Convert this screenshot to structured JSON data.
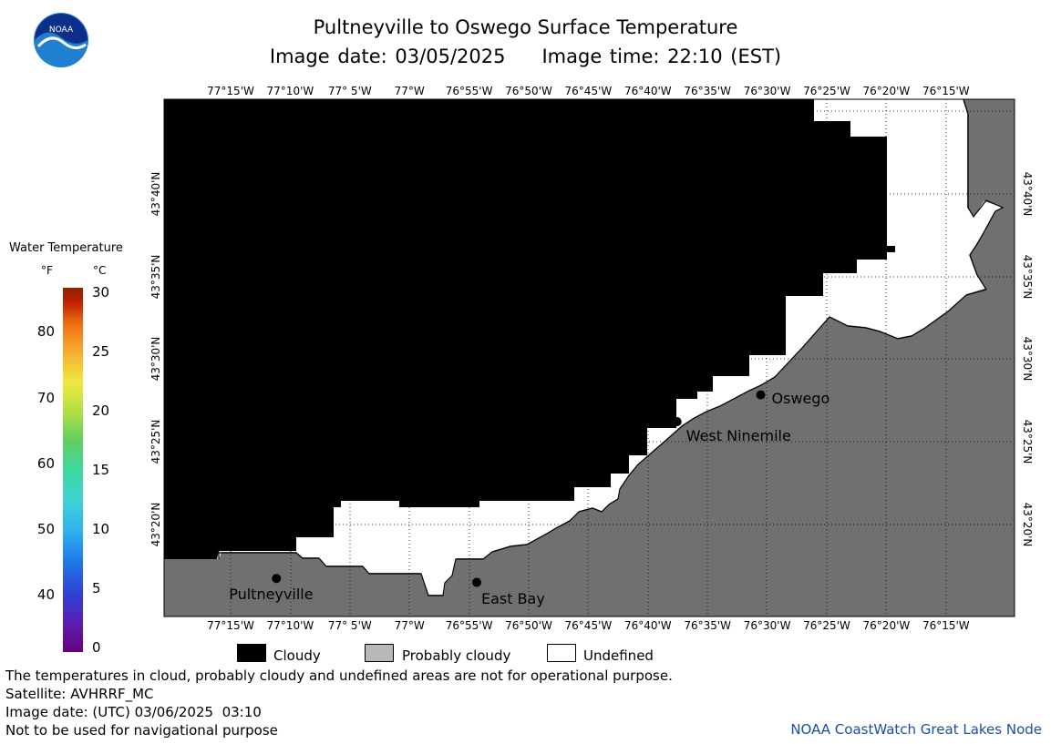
{
  "header": {
    "title": "Pultneyville to Oswego Surface Temperature",
    "image_date": "Image date: 03/05/2025",
    "image_time": "Image time: 22:10 (EST)",
    "logo_text": "NOAA"
  },
  "map": {
    "lon_ticks": [
      "77°15'W",
      "77°10'W",
      "77° 5'W",
      "77°W",
      "76°55'W",
      "76°50'W",
      "76°45'W",
      "76°40'W",
      "76°35'W",
      "76°30'W",
      "76°25'W",
      "76°20'W",
      "76°15'W"
    ],
    "lat_ticks": [
      "43°20'N",
      "43°25'N",
      "43°30'N",
      "43°35'N",
      "43°40'N"
    ],
    "cities": [
      {
        "name": "Pultneyville",
        "lon": -77.186,
        "lat": 43.279
      },
      {
        "name": "East Bay",
        "lon": -76.906,
        "lat": 43.275
      },
      {
        "name": "West Ninemile",
        "lon": -76.626,
        "lat": 43.437
      },
      {
        "name": "Oswego",
        "lon": -76.509,
        "lat": 43.464
      }
    ],
    "colors": {
      "cloudy": "#000000",
      "land": "#707070",
      "undefined": "#ffffff"
    }
  },
  "legend": {
    "title": "Water Temperature",
    "unit_f": "°F",
    "unit_c": "°C",
    "f_ticks": [
      "40",
      "50",
      "60",
      "70",
      "80"
    ],
    "c_ticks": [
      "0",
      "5",
      "10",
      "15",
      "20",
      "25",
      "30"
    ],
    "items": [
      {
        "label": "Cloudy",
        "color": "#000000"
      },
      {
        "label": "Probably cloudy",
        "color": "#b8b8b8"
      },
      {
        "label": "Undefined",
        "color": "#ffffff"
      }
    ]
  },
  "footer": {
    "disclaimer": "The temperatures in cloud, probably cloudy and undefined areas are not for operational purpose.",
    "satellite": "Satellite: AVHRRF_MC",
    "utc_date": "Image date: (UTC) 03/06/2025  03:10",
    "nav_warning": "Not to be used for navigational purpose",
    "credit": "NOAA CoastWatch Great Lakes Node"
  }
}
